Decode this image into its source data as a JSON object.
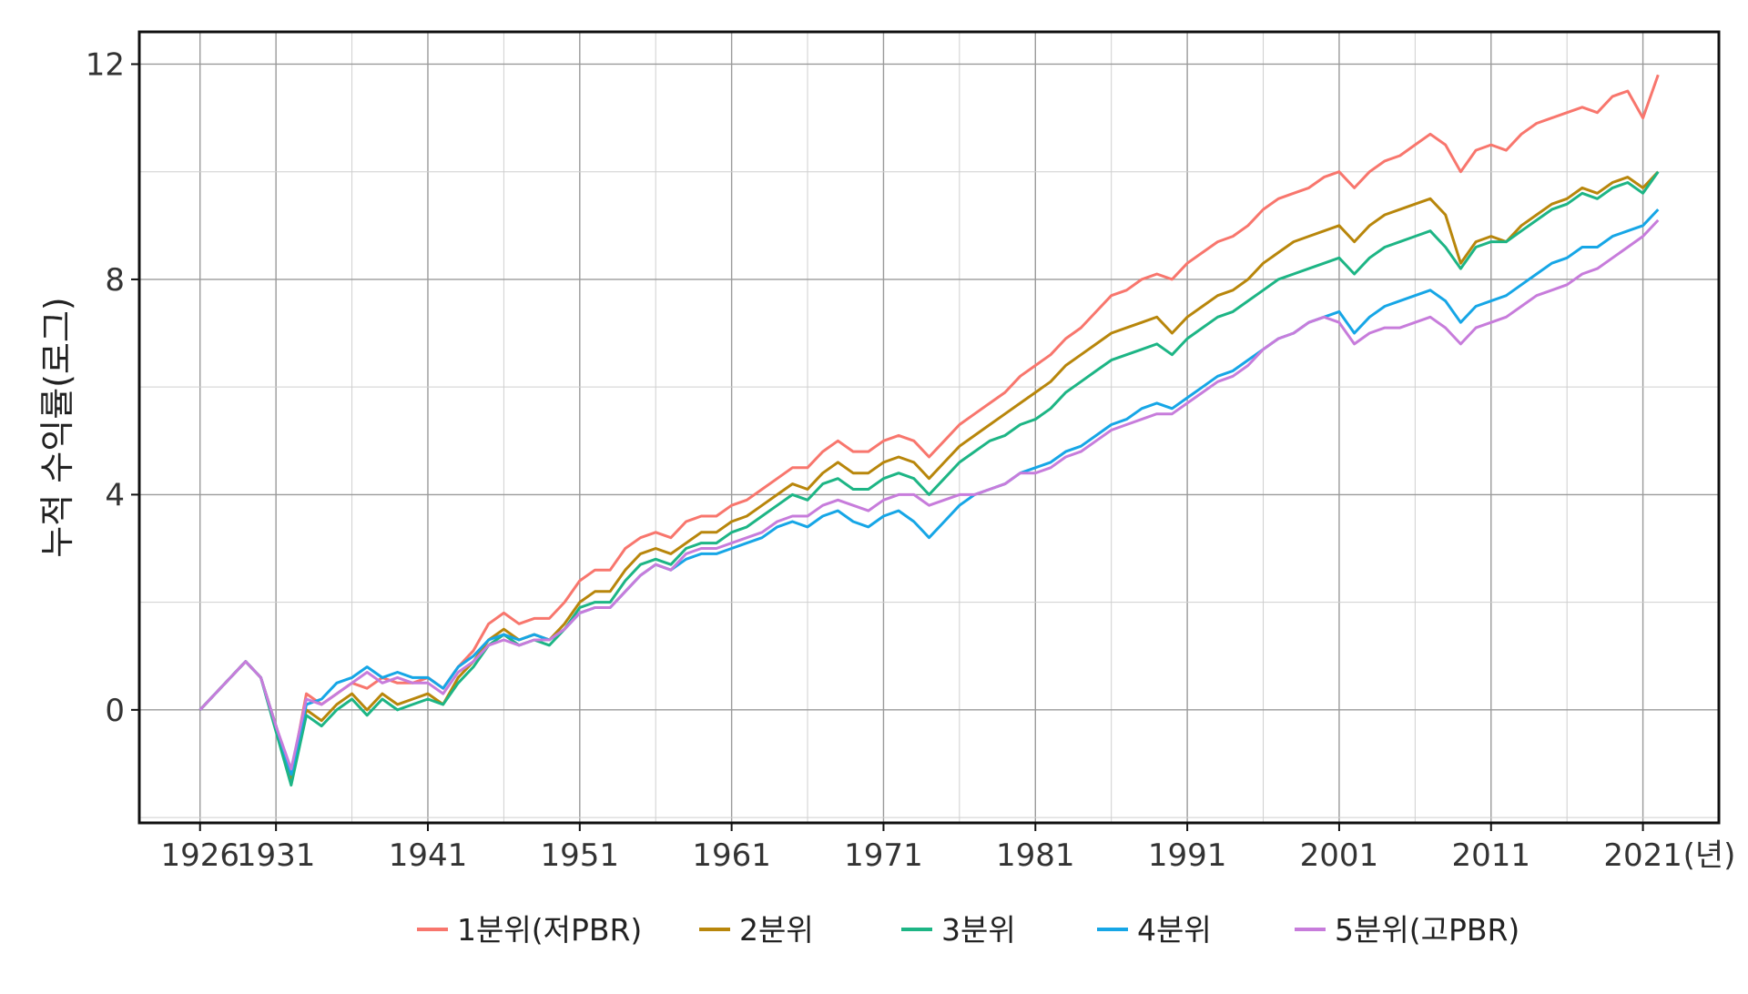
{
  "chart_data": {
    "type": "line",
    "title": "",
    "xlabel": "",
    "x_unit": "(년)",
    "ylabel": "누적 수익률(로그)",
    "xlim": [
      1922,
      2026
    ],
    "ylim": [
      -2.1,
      12.6
    ],
    "x_ticks": [
      1926,
      1931,
      1941,
      1951,
      1961,
      1971,
      1981,
      1991,
      2001,
      2011,
      2021
    ],
    "x_tick_labels": [
      "1926",
      "1931",
      "1941",
      "1951",
      "1961",
      "1971",
      "1981",
      "1991",
      "2001",
      "2011",
      "2021"
    ],
    "y_ticks": [
      0,
      4,
      8,
      12
    ],
    "y_tick_labels": [
      "0",
      "4",
      "8",
      "12"
    ],
    "grid": true,
    "legend_position": "bottom",
    "x": [
      1926,
      1927,
      1928,
      1929,
      1930,
      1931,
      1932,
      1933,
      1934,
      1935,
      1936,
      1937,
      1938,
      1939,
      1940,
      1941,
      1942,
      1943,
      1944,
      1945,
      1946,
      1947,
      1948,
      1949,
      1950,
      1951,
      1952,
      1953,
      1954,
      1955,
      1956,
      1957,
      1958,
      1959,
      1960,
      1961,
      1962,
      1963,
      1964,
      1965,
      1966,
      1967,
      1968,
      1969,
      1970,
      1971,
      1972,
      1973,
      1974,
      1975,
      1976,
      1977,
      1978,
      1979,
      1980,
      1981,
      1982,
      1983,
      1984,
      1985,
      1986,
      1987,
      1988,
      1989,
      1990,
      1991,
      1992,
      1993,
      1994,
      1995,
      1996,
      1997,
      1998,
      1999,
      2000,
      2001,
      2002,
      2003,
      2004,
      2005,
      2006,
      2007,
      2008,
      2009,
      2010,
      2011,
      2012,
      2013,
      2014,
      2015,
      2016,
      2017,
      2018,
      2019,
      2020,
      2021,
      2022
    ],
    "series": [
      {
        "name": "1분위(저PBR)",
        "color": "#F8766D",
        "values": [
          0.0,
          0.3,
          0.6,
          0.9,
          0.6,
          -0.3,
          -1.2,
          0.3,
          0.1,
          0.3,
          0.5,
          0.4,
          0.6,
          0.5,
          0.5,
          0.6,
          0.4,
          0.8,
          1.1,
          1.6,
          1.8,
          1.6,
          1.7,
          1.7,
          2.0,
          2.4,
          2.6,
          2.6,
          3.0,
          3.2,
          3.3,
          3.2,
          3.5,
          3.6,
          3.6,
          3.8,
          3.9,
          4.1,
          4.3,
          4.5,
          4.5,
          4.8,
          5.0,
          4.8,
          4.8,
          5.0,
          5.1,
          5.0,
          4.7,
          5.0,
          5.3,
          5.5,
          5.7,
          5.9,
          6.2,
          6.4,
          6.6,
          6.9,
          7.1,
          7.4,
          7.7,
          7.8,
          8.0,
          8.1,
          8.0,
          8.3,
          8.5,
          8.7,
          8.8,
          9.0,
          9.3,
          9.5,
          9.6,
          9.7,
          9.9,
          10.0,
          9.7,
          10.0,
          10.2,
          10.3,
          10.5,
          10.7,
          10.5,
          10.0,
          10.4,
          10.5,
          10.4,
          10.7,
          10.9,
          11.0,
          11.1,
          11.2,
          11.1,
          11.4,
          11.5,
          11.0,
          11.8
        ]
      },
      {
        "name": "2분위",
        "color": "#B8860B",
        "values": [
          0.0,
          0.3,
          0.6,
          0.9,
          0.6,
          -0.3,
          -1.3,
          0.0,
          -0.2,
          0.1,
          0.3,
          0.0,
          0.3,
          0.1,
          0.2,
          0.3,
          0.1,
          0.6,
          0.9,
          1.3,
          1.5,
          1.3,
          1.4,
          1.3,
          1.6,
          2.0,
          2.2,
          2.2,
          2.6,
          2.9,
          3.0,
          2.9,
          3.1,
          3.3,
          3.3,
          3.5,
          3.6,
          3.8,
          4.0,
          4.2,
          4.1,
          4.4,
          4.6,
          4.4,
          4.4,
          4.6,
          4.7,
          4.6,
          4.3,
          4.6,
          4.9,
          5.1,
          5.3,
          5.5,
          5.7,
          5.9,
          6.1,
          6.4,
          6.6,
          6.8,
          7.0,
          7.1,
          7.2,
          7.3,
          7.0,
          7.3,
          7.5,
          7.7,
          7.8,
          8.0,
          8.3,
          8.5,
          8.7,
          8.8,
          8.9,
          9.0,
          8.7,
          9.0,
          9.2,
          9.3,
          9.4,
          9.5,
          9.2,
          8.3,
          8.7,
          8.8,
          8.7,
          9.0,
          9.2,
          9.4,
          9.5,
          9.7,
          9.6,
          9.8,
          9.9,
          9.7,
          10.0
        ]
      },
      {
        "name": "3분위",
        "color": "#1DB585",
        "values": [
          0.0,
          0.3,
          0.6,
          0.9,
          0.6,
          -0.4,
          -1.4,
          -0.1,
          -0.3,
          0.0,
          0.2,
          -0.1,
          0.2,
          0.0,
          0.1,
          0.2,
          0.1,
          0.5,
          0.8,
          1.2,
          1.4,
          1.2,
          1.3,
          1.2,
          1.5,
          1.9,
          2.0,
          2.0,
          2.4,
          2.7,
          2.8,
          2.7,
          3.0,
          3.1,
          3.1,
          3.3,
          3.4,
          3.6,
          3.8,
          4.0,
          3.9,
          4.2,
          4.3,
          4.1,
          4.1,
          4.3,
          4.4,
          4.3,
          4.0,
          4.3,
          4.6,
          4.8,
          5.0,
          5.1,
          5.3,
          5.4,
          5.6,
          5.9,
          6.1,
          6.3,
          6.5,
          6.6,
          6.7,
          6.8,
          6.6,
          6.9,
          7.1,
          7.3,
          7.4,
          7.6,
          7.8,
          8.0,
          8.1,
          8.2,
          8.3,
          8.4,
          8.1,
          8.4,
          8.6,
          8.7,
          8.8,
          8.9,
          8.6,
          8.2,
          8.6,
          8.7,
          8.7,
          8.9,
          9.1,
          9.3,
          9.4,
          9.6,
          9.5,
          9.7,
          9.8,
          9.6,
          10.0
        ]
      },
      {
        "name": "4분위",
        "color": "#16A6E6",
        "values": [
          0.0,
          0.3,
          0.6,
          0.9,
          0.6,
          -0.3,
          -1.2,
          0.1,
          0.2,
          0.5,
          0.6,
          0.8,
          0.6,
          0.7,
          0.6,
          0.6,
          0.4,
          0.8,
          1.0,
          1.3,
          1.4,
          1.3,
          1.4,
          1.3,
          1.5,
          1.8,
          1.9,
          1.9,
          2.2,
          2.5,
          2.7,
          2.6,
          2.8,
          2.9,
          2.9,
          3.0,
          3.1,
          3.2,
          3.4,
          3.5,
          3.4,
          3.6,
          3.7,
          3.5,
          3.4,
          3.6,
          3.7,
          3.5,
          3.2,
          3.5,
          3.8,
          4.0,
          4.1,
          4.2,
          4.4,
          4.5,
          4.6,
          4.8,
          4.9,
          5.1,
          5.3,
          5.4,
          5.6,
          5.7,
          5.6,
          5.8,
          6.0,
          6.2,
          6.3,
          6.5,
          6.7,
          6.9,
          7.0,
          7.2,
          7.3,
          7.4,
          7.0,
          7.3,
          7.5,
          7.6,
          7.7,
          7.8,
          7.6,
          7.2,
          7.5,
          7.6,
          7.7,
          7.9,
          8.1,
          8.3,
          8.4,
          8.6,
          8.6,
          8.8,
          8.9,
          9.0,
          9.3
        ]
      },
      {
        "name": "5분위(고PBR)",
        "color": "#C77CDB",
        "values": [
          0.0,
          0.3,
          0.6,
          0.9,
          0.6,
          -0.3,
          -1.1,
          0.2,
          0.1,
          0.3,
          0.5,
          0.7,
          0.5,
          0.6,
          0.5,
          0.5,
          0.3,
          0.7,
          0.9,
          1.2,
          1.3,
          1.2,
          1.3,
          1.3,
          1.5,
          1.8,
          1.9,
          1.9,
          2.2,
          2.5,
          2.7,
          2.6,
          2.9,
          3.0,
          3.0,
          3.1,
          3.2,
          3.3,
          3.5,
          3.6,
          3.6,
          3.8,
          3.9,
          3.8,
          3.7,
          3.9,
          4.0,
          4.0,
          3.8,
          3.9,
          4.0,
          4.0,
          4.1,
          4.2,
          4.4,
          4.4,
          4.5,
          4.7,
          4.8,
          5.0,
          5.2,
          5.3,
          5.4,
          5.5,
          5.5,
          5.7,
          5.9,
          6.1,
          6.2,
          6.4,
          6.7,
          6.9,
          7.0,
          7.2,
          7.3,
          7.2,
          6.8,
          7.0,
          7.1,
          7.1,
          7.2,
          7.3,
          7.1,
          6.8,
          7.1,
          7.2,
          7.3,
          7.5,
          7.7,
          7.8,
          7.9,
          8.1,
          8.2,
          8.4,
          8.6,
          8.8,
          9.1
        ]
      }
    ]
  }
}
